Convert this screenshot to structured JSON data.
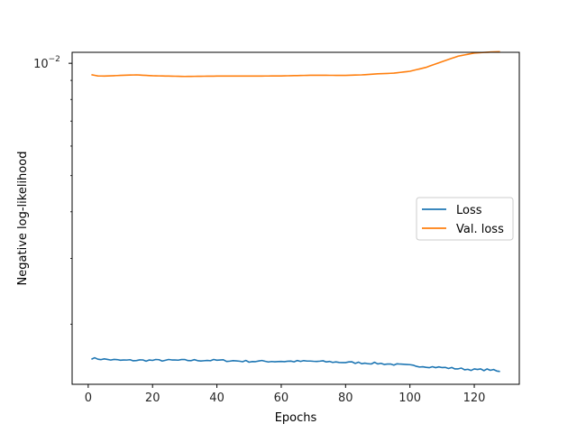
{
  "chart_data": {
    "type": "line",
    "title": "",
    "xlabel": "Epochs",
    "ylabel": "Negative log-likelihood",
    "yscale": "log",
    "xlim": [
      -5,
      134
    ],
    "ylim": [
      0.00138,
      0.0107
    ],
    "xticks": [
      0,
      20,
      40,
      60,
      80,
      100,
      120
    ],
    "xtick_labels": [
      "0",
      "20",
      "40",
      "60",
      "80",
      "100",
      "120"
    ],
    "yticks": [
      0.01
    ],
    "ytick_labels": [
      {
        "base": "10",
        "exp": "−2"
      }
    ],
    "grid": false,
    "legend_position": "center-right",
    "x_range": [
      1,
      128
    ],
    "series": [
      {
        "name": "Loss",
        "color": "#1f77b4",
        "x_anchor": [
          1,
          5,
          10,
          20,
          30,
          40,
          50,
          60,
          70,
          80,
          90,
          95,
          100,
          105,
          110,
          115,
          120,
          125,
          128
        ],
        "values": [
          0.00162,
          0.00161,
          0.0016,
          0.0016,
          0.0016,
          0.0016,
          0.00159,
          0.00159,
          0.00159,
          0.00158,
          0.00157,
          0.00156,
          0.00155,
          0.00154,
          0.00153,
          0.00152,
          0.00151,
          0.00151,
          0.00149
        ]
      },
      {
        "name": "Val. loss",
        "color": "#ff7f0e",
        "x_anchor": [
          1,
          3,
          5,
          10,
          15,
          20,
          30,
          40,
          50,
          60,
          70,
          80,
          85,
          90,
          95,
          100,
          105,
          110,
          115,
          120,
          125,
          128
        ],
        "values": [
          0.00932,
          0.00925,
          0.00924,
          0.00928,
          0.00931,
          0.00926,
          0.00922,
          0.00924,
          0.00924,
          0.00925,
          0.00929,
          0.00928,
          0.00931,
          0.00937,
          0.00941,
          0.00952,
          0.00975,
          0.0101,
          0.01045,
          0.01065,
          0.01072,
          0.01074
        ]
      }
    ]
  }
}
